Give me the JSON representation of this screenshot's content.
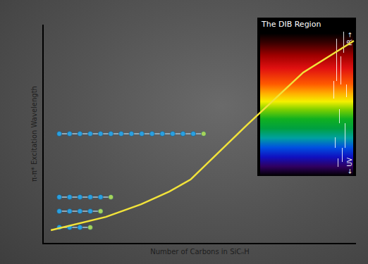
{
  "chart_data": {
    "type": "line",
    "x_label": "Number of Carbons in SiCₙH",
    "y_label": "π-π* Excitation Wavelength",
    "x": [
      0.23,
      1.08,
      1.99,
      3.12,
      4.02,
      4.7,
      6.5,
      8.31,
      9.93
    ],
    "values": [
      0.58,
      0.87,
      1.19,
      1.77,
      2.35,
      2.9,
      5.39,
      7.81,
      9.26
    ],
    "color": "#f2e33a",
    "xlim": [
      0,
      10
    ],
    "ylim": [
      0,
      10
    ],
    "xticks": [],
    "yticks": [],
    "tick_labels": false,
    "grid": false,
    "molecules": [
      {
        "carbons": 3,
        "y": 0.71
      },
      {
        "carbons": 4,
        "y": 1.45
      },
      {
        "carbons": 5,
        "y": 2.1
      },
      {
        "carbons": 14,
        "y": 5.0
      }
    ],
    "inset": {
      "title": "The DIB Region",
      "top_label": "IR →",
      "bottom_label": "← UV"
    }
  }
}
